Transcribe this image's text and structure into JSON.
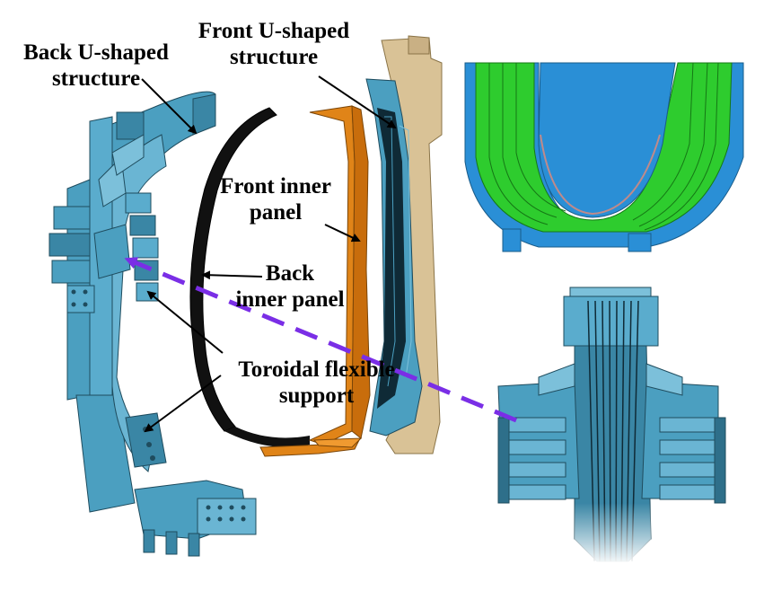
{
  "labels": {
    "back_u_shaped": [
      "Back U-shaped",
      "structure"
    ],
    "front_u_shaped": [
      "Front U-shaped",
      "structure"
    ],
    "front_inner_panel": [
      "Front inner",
      "panel"
    ],
    "back_inner_panel": [
      "Back",
      "inner panel"
    ],
    "toroidal_flexible_support": [
      "Toroidal flexible",
      "support"
    ]
  },
  "colors": {
    "steel_blue": "#4b9fc0",
    "steel_blue_light": "#7cc0da",
    "steel_blue_dark": "#2e6f8a",
    "orange_panel": "#e08418",
    "black_panel": "#111111",
    "tan_structure": "#d9c296",
    "coil_green": "#2ecc2e",
    "coil_blue": "#2a8fd6",
    "dashed_connector": "#7a2ee6"
  }
}
